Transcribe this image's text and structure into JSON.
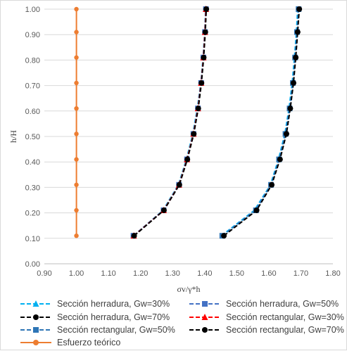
{
  "chart_data": {
    "type": "line",
    "xlabel": "σv/γ*h",
    "ylabel": "h/H",
    "xlim": [
      0.9,
      1.8
    ],
    "ylim": [
      0,
      1
    ],
    "x_ticks": [
      "0.90",
      "1.00",
      "1.10",
      "1.20",
      "1.30",
      "1.40",
      "1.50",
      "1.60",
      "1.70",
      "1.80"
    ],
    "y_ticks": [
      "0.00",
      "0.10",
      "0.20",
      "0.30",
      "0.40",
      "0.50",
      "0.60",
      "0.70",
      "0.80",
      "0.90",
      "1.00"
    ],
    "grid": "horizontal",
    "legend_position": "bottom",
    "y": [
      0.11,
      0.21,
      0.31,
      0.41,
      0.51,
      0.61,
      0.71,
      0.81,
      0.91,
      1.0
    ],
    "series": [
      {
        "name": "Sección herradura, Gw=30%",
        "color": "#00b0f0",
        "dash": "dash",
        "marker": "none",
        "x": [
          1.178,
          1.27,
          1.318,
          1.343,
          1.363,
          1.377,
          1.388,
          1.395,
          1.4,
          1.403
        ]
      },
      {
        "name": "Sección herradura, Gw=50%",
        "color": "#4472c4",
        "dash": "dash",
        "marker": "square",
        "x": [
          1.178,
          1.272,
          1.32,
          1.345,
          1.365,
          1.379,
          1.389,
          1.396,
          1.401,
          1.404
        ]
      },
      {
        "name": "Sección herradura, Gw=70%",
        "color": "#000000",
        "dash": "dash",
        "marker": "circle",
        "x": [
          1.18,
          1.273,
          1.321,
          1.346,
          1.366,
          1.38,
          1.39,
          1.397,
          1.402,
          1.405
        ]
      },
      {
        "name": "Sección rectangular, Gw=30%",
        "color": "#ff0000",
        "dash": "dash",
        "marker": "triangle",
        "x": [
          1.179,
          1.272,
          1.32,
          1.345,
          1.365,
          1.379,
          1.389,
          1.396,
          1.401,
          1.404
        ]
      },
      {
        "name": "Sección rectangular, Gw=50%",
        "color": "#2e75b6",
        "dash": "dash",
        "marker": "square",
        "x": [
          1.455,
          1.56,
          1.607,
          1.632,
          1.652,
          1.665,
          1.675,
          1.682,
          1.688,
          1.693
        ]
      },
      {
        "name": "Sección rectangular, Gw=70%",
        "color": "#000000",
        "dash": "dash",
        "marker": "circle",
        "x": [
          1.46,
          1.562,
          1.609,
          1.635,
          1.655,
          1.667,
          1.677,
          1.684,
          1.69,
          1.695
        ]
      },
      {
        "name": "Esfuerzo teórico",
        "color": "#ed7d31",
        "dash": "solid",
        "marker": "circle",
        "x": [
          1.0,
          1.0,
          1.0,
          1.0,
          1.0,
          1.0,
          1.0,
          1.0,
          1.0,
          1.0
        ]
      }
    ],
    "extra_series": [
      {
        "color": "#00b0f0",
        "dash": "dash",
        "x": [
          1.452,
          1.555,
          1.605,
          1.63,
          1.65,
          1.663,
          1.673,
          1.68,
          1.686,
          1.69
        ]
      },
      {
        "color": "#4472c4",
        "dash": "dash",
        "x": [
          1.455,
          1.558,
          1.607,
          1.633,
          1.653,
          1.666,
          1.676,
          1.683,
          1.689,
          1.693
        ]
      }
    ]
  }
}
